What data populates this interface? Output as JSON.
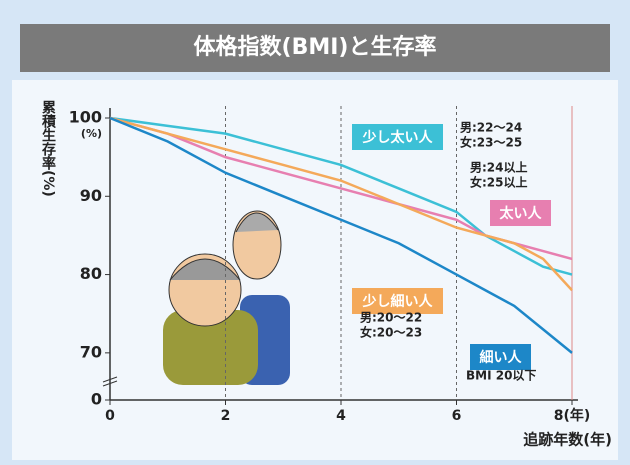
{
  "chart_data": {
    "type": "line",
    "title": "体格指数(BMI)と生存率",
    "y_label": "累積生存率(%)",
    "y_unit": "(%)",
    "x_label": "追跡年数(年)",
    "x": [
      0,
      1,
      2,
      3,
      4,
      5,
      6,
      6.5,
      7,
      7.5,
      8
    ],
    "xlim": [
      0,
      8
    ],
    "xticks": [
      0,
      2,
      4,
      6,
      {
        "value": 8,
        "label": "8(年)"
      }
    ],
    "ylim": [
      0,
      100
    ],
    "axis_break": [
      0,
      65
    ],
    "yticks": [
      0,
      70,
      80,
      90,
      100
    ],
    "grid": true,
    "series": [
      {
        "name": "少し太い人",
        "color": "#3cc0d6",
        "notes": [
          "男:22～24",
          "女:23～25"
        ],
        "values": [
          100,
          99,
          98,
          96,
          94,
          91,
          88,
          85,
          83,
          81,
          80
        ]
      },
      {
        "name": "太い人",
        "color": "#e77fb0",
        "notes": [
          "男:24以上",
          "女:25以上"
        ],
        "values": [
          100,
          98,
          95,
          93,
          91,
          89,
          87,
          85,
          84,
          83,
          82
        ]
      },
      {
        "name": "少し細い人",
        "color": "#f4a95a",
        "notes": [
          "男:20～22",
          "女:20～23"
        ],
        "values": [
          100,
          98,
          96,
          94,
          92,
          89,
          86,
          85,
          84,
          82,
          78
        ]
      },
      {
        "name": "細い人",
        "color": "#1d87c8",
        "notes": [
          "BMI 20以下"
        ],
        "values": [
          100,
          97,
          93,
          90,
          87,
          84,
          80,
          78,
          76,
          73,
          70
        ]
      }
    ]
  }
}
